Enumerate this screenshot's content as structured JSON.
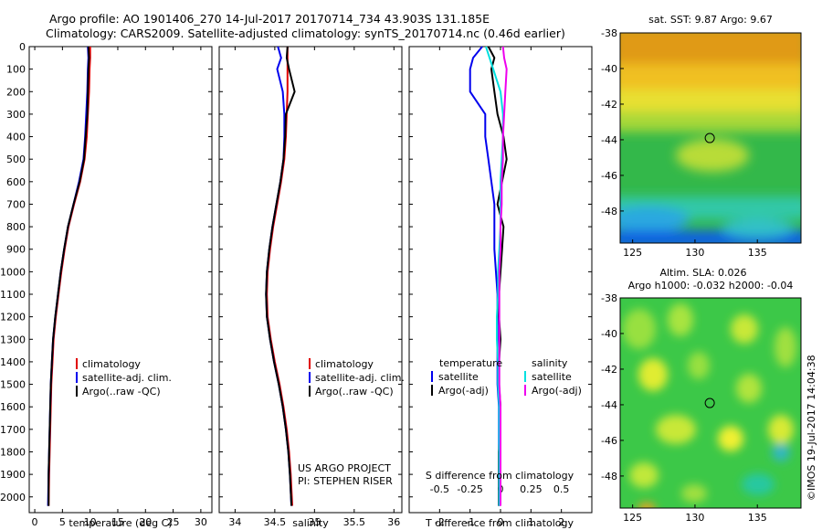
{
  "header": {
    "line1": "Argo profile: AO 1901406_270 14-Jul-2017 20170714_734 43.903S 131.185E",
    "line2": "Climatology: CARS2009. Satellite-adjusted climatology: synTS_20170714.nc (0.46d earlier)"
  },
  "side_label": "©IMOS 19-Jul-2017 14:04:38",
  "colors": {
    "climatology": "#e00000",
    "satellite": "#0000ee",
    "argo": "#000000",
    "satellite_sal": "#00e0e0",
    "argo_sal": "#ee00ee"
  },
  "chart_data": [
    {
      "type": "line",
      "id": "temperature",
      "xlabel": "temperature (deg C)",
      "xlim": [
        -1,
        32
      ],
      "xticks": [
        0,
        5,
        10,
        15,
        20,
        25,
        30
      ],
      "ylim": [
        2070,
        0
      ],
      "yticks": [
        0,
        100,
        200,
        300,
        400,
        500,
        600,
        700,
        800,
        900,
        1000,
        1100,
        1200,
        1300,
        1400,
        1500,
        1600,
        1700,
        1800,
        1900,
        2000
      ],
      "legend": {
        "position": "lower-center",
        "entries": [
          "climatology",
          "satellite-adj. clim.",
          "Argo(..raw -QC)"
        ]
      },
      "series": [
        {
          "name": "climatology",
          "color_key": "climatology",
          "x": [
            10.0,
            10.0,
            9.9,
            9.8,
            9.6,
            9.4,
            9.0,
            8.2,
            7.1,
            6.1,
            5.4,
            4.8,
            4.3,
            3.8,
            3.4,
            3.2,
            3.0,
            2.9,
            2.8,
            2.7,
            2.6,
            2.5
          ],
          "y": [
            0,
            50,
            100,
            200,
            300,
            400,
            500,
            600,
            700,
            800,
            900,
            1000,
            1100,
            1200,
            1300,
            1400,
            1500,
            1600,
            1700,
            1800,
            1900,
            2040
          ]
        },
        {
          "name": "satellite-adj. clim.",
          "color_key": "satellite",
          "x": [
            9.6,
            9.7,
            9.6,
            9.5,
            9.3,
            9.1,
            8.8,
            8.0,
            7.0,
            6.0,
            5.3,
            4.7,
            4.2,
            3.7,
            3.3,
            3.1,
            2.9,
            2.8,
            2.7,
            2.6,
            2.5,
            2.4
          ],
          "y": [
            0,
            50,
            100,
            200,
            300,
            400,
            500,
            600,
            700,
            800,
            900,
            1000,
            1100,
            1200,
            1300,
            1400,
            1500,
            1600,
            1700,
            1800,
            1900,
            2040
          ]
        },
        {
          "name": "Argo(..raw -QC)",
          "color_key": "argo",
          "x": [
            9.7,
            9.8,
            9.7,
            9.6,
            9.5,
            9.2,
            8.9,
            8.1,
            7.0,
            6.0,
            5.3,
            4.7,
            4.2,
            3.7,
            3.3,
            3.1,
            2.9,
            2.8,
            2.7,
            2.6,
            2.5,
            2.5
          ],
          "y": [
            0,
            50,
            100,
            200,
            300,
            400,
            500,
            600,
            700,
            800,
            900,
            1000,
            1100,
            1200,
            1300,
            1400,
            1500,
            1600,
            1700,
            1800,
            1900,
            2040
          ]
        }
      ]
    },
    {
      "type": "line",
      "id": "salinity",
      "xlabel": "salinity",
      "xlim": [
        33.8,
        36.1
      ],
      "xticks": [
        34,
        34.5,
        35,
        35.5,
        36
      ],
      "xtick_labels": [
        "34",
        "34.5",
        "35",
        "35.5",
        "36"
      ],
      "ylim": [
        2070,
        0
      ],
      "legend": {
        "position": "lower-center",
        "entries": [
          "climatology",
          "satellite-adj. clim.",
          "Argo(..raw -QC)"
        ]
      },
      "annotations": [
        "US ARGO PROJECT",
        "PI: STEPHEN RISER"
      ],
      "series": [
        {
          "name": "climatology",
          "color_key": "climatology",
          "x": [
            34.66,
            34.66,
            34.66,
            34.66,
            34.65,
            34.64,
            34.62,
            34.58,
            34.53,
            34.48,
            34.44,
            34.41,
            34.4,
            34.41,
            34.45,
            34.5,
            34.56,
            34.61,
            34.65,
            34.68,
            34.7,
            34.72
          ],
          "y": [
            0,
            50,
            100,
            200,
            300,
            400,
            500,
            600,
            700,
            800,
            900,
            1000,
            1100,
            1200,
            1300,
            1400,
            1500,
            1600,
            1700,
            1800,
            1900,
            2040
          ]
        },
        {
          "name": "satellite-adj. clim.",
          "color_key": "satellite",
          "x": [
            34.54,
            34.58,
            34.53,
            34.6,
            34.62,
            34.62,
            34.61,
            34.57,
            34.52,
            34.47,
            34.43,
            34.4,
            34.39,
            34.4,
            34.44,
            34.49,
            34.55,
            34.6,
            34.64,
            34.67,
            34.69,
            34.71
          ],
          "y": [
            0,
            50,
            100,
            200,
            300,
            400,
            500,
            600,
            700,
            800,
            900,
            1000,
            1100,
            1200,
            1300,
            1400,
            1500,
            1600,
            1700,
            1800,
            1900,
            2040
          ]
        },
        {
          "name": "Argo(..raw -QC)",
          "color_key": "argo",
          "x": [
            34.66,
            34.65,
            34.68,
            34.75,
            34.64,
            34.63,
            34.61,
            34.57,
            34.52,
            34.47,
            34.43,
            34.4,
            34.39,
            34.4,
            34.44,
            34.49,
            34.55,
            34.6,
            34.64,
            34.67,
            34.69,
            34.71
          ],
          "y": [
            0,
            50,
            100,
            200,
            300,
            400,
            500,
            600,
            700,
            800,
            900,
            1000,
            1100,
            1200,
            1300,
            1400,
            1500,
            1600,
            1700,
            1800,
            1900,
            2040
          ]
        }
      ]
    },
    {
      "type": "line",
      "id": "difference",
      "xlabel": "T difference from climatology",
      "top_xlabel": "S difference from climatology",
      "xlim": [
        -3,
        3
      ],
      "xticks": [
        -2,
        -1,
        0,
        1,
        2
      ],
      "top_xticks": [
        -0.5,
        -0.25,
        0,
        0.25,
        0.5
      ],
      "top_xtick_labels": [
        "-0.5",
        "-0.25",
        "0",
        "0.25",
        "0.5"
      ],
      "ylim": [
        2070,
        0
      ],
      "legend": {
        "position": "lower-center",
        "headers": [
          "temperature",
          "salinity"
        ],
        "left_entries": [
          "satellite",
          "Argo(-adj)"
        ],
        "right_entries": [
          "satellite",
          "Argo(-adj)"
        ]
      },
      "series": [
        {
          "name": "satellite",
          "color_key": "satellite",
          "x": [
            -0.6,
            -0.9,
            -1.0,
            -1.0,
            -0.5,
            -0.5,
            -0.4,
            -0.3,
            -0.2,
            -0.2,
            -0.2,
            -0.15,
            -0.1,
            -0.1,
            -0.1,
            -0.1,
            -0.1,
            -0.05,
            -0.05,
            -0.05,
            -0.05,
            -0.05
          ],
          "y": [
            0,
            50,
            100,
            200,
            300,
            400,
            500,
            600,
            700,
            800,
            900,
            1000,
            1100,
            1200,
            1300,
            1400,
            1500,
            1600,
            1700,
            1800,
            1900,
            2040
          ]
        },
        {
          "name": "Argo(-adj)",
          "color_key": "argo",
          "x": [
            -0.4,
            -0.2,
            -0.3,
            -0.2,
            -0.1,
            0.1,
            0.2,
            0.05,
            -0.1,
            0.1,
            0.05,
            0.0,
            -0.05,
            -0.05,
            0.0,
            -0.05,
            -0.05,
            0.0,
            0.0,
            -0.05,
            -0.05,
            -0.05
          ],
          "y": [
            0,
            50,
            100,
            200,
            300,
            400,
            500,
            600,
            700,
            800,
            900,
            1000,
            1100,
            1200,
            1300,
            1400,
            1500,
            1600,
            1700,
            1800,
            1900,
            2040
          ]
        },
        {
          "name": "satellite",
          "color_key": "satellite_sal",
          "x": [
            -0.12,
            -0.09,
            -0.06,
            0.0,
            0.02,
            0.02,
            0.01,
            0.0,
            0.0,
            0.0,
            -0.01,
            -0.02,
            -0.02,
            -0.03,
            -0.03,
            -0.02,
            -0.02,
            -0.01,
            -0.01,
            -0.01,
            -0.01,
            -0.01
          ],
          "y": [
            0,
            50,
            100,
            200,
            300,
            400,
            500,
            600,
            700,
            800,
            900,
            1000,
            1100,
            1200,
            1300,
            1400,
            1500,
            1600,
            1700,
            1800,
            1900,
            2040
          ]
        },
        {
          "name": "Argo(-adj)",
          "color_key": "argo_sal",
          "x": [
            0.02,
            0.03,
            0.05,
            0.04,
            0.03,
            0.02,
            0.02,
            0.01,
            0.01,
            0.0,
            0.0,
            -0.01,
            -0.01,
            -0.01,
            -0.01,
            -0.01,
            -0.01,
            0.0,
            0.0,
            0.0,
            0.0,
            0.0
          ],
          "y": [
            0,
            50,
            100,
            200,
            300,
            400,
            500,
            600,
            700,
            800,
            900,
            1000,
            1100,
            1200,
            1300,
            1400,
            1500,
            1600,
            1700,
            1800,
            1900,
            2040
          ]
        }
      ]
    },
    {
      "type": "heatmap",
      "id": "sst_map",
      "title": "sat. SST: 9.87 Argo: 9.67",
      "xlim": [
        124,
        138.5
      ],
      "ylim": [
        -49.8,
        -38
      ],
      "xticks": [
        125,
        130,
        135
      ],
      "yticks": [
        -38,
        -40,
        -42,
        -44,
        -46,
        -48
      ],
      "marker": {
        "lon": 131.185,
        "lat": -43.903
      }
    },
    {
      "type": "heatmap",
      "id": "sla_map",
      "title": "Altim. SLA: 0.026",
      "subtitle": "Argo h1000: -0.032 h2000: -0.04",
      "xlim": [
        124,
        138.5
      ],
      "ylim": [
        -49.8,
        -38
      ],
      "xticks": [
        125,
        130,
        135
      ],
      "yticks": [
        -38,
        -40,
        -42,
        -44,
        -46,
        -48
      ],
      "marker": {
        "lon": 131.185,
        "lat": -43.903
      }
    }
  ]
}
